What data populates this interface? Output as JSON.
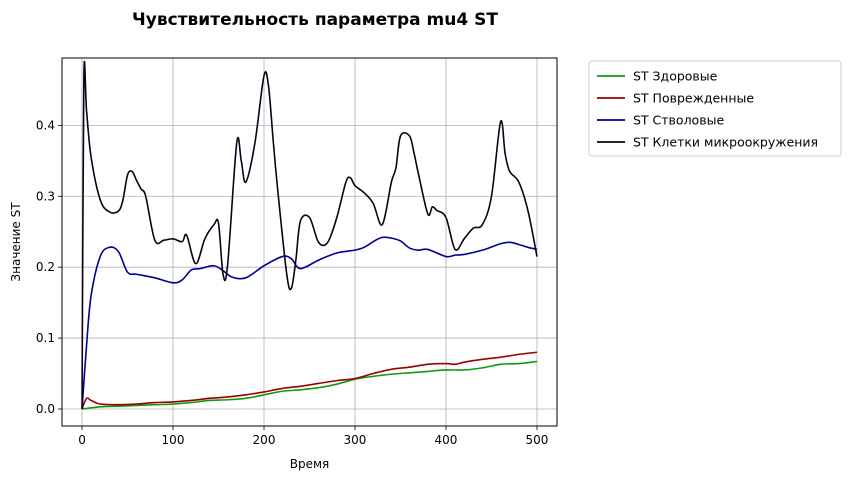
{
  "chart_data": {
    "type": "line",
    "title": "Чувствительность параметра mu4 ST",
    "xlabel": "Время",
    "ylabel": "Значение ST",
    "xlim": [
      -22,
      522
    ],
    "ylim": [
      -0.024,
      0.495
    ],
    "xticks": [
      0,
      100,
      200,
      300,
      400,
      500
    ],
    "yticks": [
      0.0,
      0.1,
      0.2,
      0.3,
      0.4
    ],
    "xtick_labels": [
      "0",
      "100",
      "200",
      "300",
      "400",
      "500"
    ],
    "ytick_labels": [
      "0.0",
      "0.1",
      "0.2",
      "0.3",
      "0.4"
    ],
    "grid": true,
    "legend_position": "outside-upper-right",
    "series": [
      {
        "name": "ST Здоровые",
        "color": "#119911",
        "x": [
          0,
          20,
          40,
          60,
          80,
          100,
          120,
          140,
          160,
          180,
          200,
          220,
          240,
          260,
          280,
          300,
          320,
          340,
          360,
          380,
          400,
          420,
          440,
          460,
          480,
          500
        ],
        "y": [
          0.0,
          0.003,
          0.004,
          0.005,
          0.006,
          0.007,
          0.009,
          0.012,
          0.013,
          0.015,
          0.02,
          0.025,
          0.027,
          0.03,
          0.035,
          0.042,
          0.046,
          0.049,
          0.051,
          0.053,
          0.055,
          0.055,
          0.058,
          0.063,
          0.064,
          0.067
        ]
      },
      {
        "name": "ST Поврежденные",
        "color": "#990000",
        "x": [
          0,
          5,
          10,
          20,
          40,
          60,
          80,
          100,
          120,
          140,
          160,
          180,
          200,
          220,
          240,
          260,
          280,
          300,
          320,
          340,
          360,
          380,
          400,
          410,
          420,
          440,
          460,
          480,
          500
        ],
        "y": [
          0.0,
          0.015,
          0.012,
          0.007,
          0.006,
          0.007,
          0.009,
          0.01,
          0.012,
          0.015,
          0.017,
          0.02,
          0.024,
          0.029,
          0.032,
          0.036,
          0.04,
          0.043,
          0.05,
          0.056,
          0.059,
          0.063,
          0.064,
          0.063,
          0.066,
          0.07,
          0.073,
          0.077,
          0.08
        ]
      },
      {
        "name": "ST Стволовые",
        "color": "#000099",
        "x": [
          0,
          5,
          10,
          20,
          30,
          40,
          50,
          60,
          80,
          100,
          110,
          120,
          130,
          145,
          155,
          165,
          180,
          200,
          220,
          230,
          240,
          260,
          280,
          300,
          310,
          320,
          330,
          340,
          350,
          360,
          370,
          380,
          400,
          410,
          420,
          440,
          460,
          470,
          480,
          490,
          500
        ],
        "y": [
          0.0,
          0.09,
          0.16,
          0.215,
          0.228,
          0.222,
          0.193,
          0.19,
          0.185,
          0.178,
          0.182,
          0.196,
          0.198,
          0.202,
          0.195,
          0.186,
          0.185,
          0.202,
          0.215,
          0.212,
          0.198,
          0.21,
          0.22,
          0.224,
          0.228,
          0.236,
          0.242,
          0.241,
          0.237,
          0.227,
          0.224,
          0.225,
          0.215,
          0.217,
          0.218,
          0.224,
          0.233,
          0.235,
          0.232,
          0.228,
          0.225
        ]
      },
      {
        "name": "ST Клетки микроокружения",
        "color": "#0d0016",
        "x": [
          0,
          2,
          5,
          10,
          20,
          30,
          40,
          45,
          50,
          55,
          60,
          65,
          70,
          80,
          90,
          100,
          110,
          115,
          125,
          135,
          145,
          150,
          155,
          160,
          170,
          175,
          180,
          190,
          200,
          205,
          210,
          215,
          225,
          230,
          235,
          240,
          250,
          260,
          270,
          280,
          290,
          295,
          300,
          310,
          320,
          330,
          340,
          345,
          350,
          360,
          365,
          370,
          380,
          385,
          390,
          400,
          410,
          420,
          430,
          440,
          450,
          460,
          465,
          470,
          480,
          490,
          500
        ],
        "y": [
          0.0,
          0.465,
          0.42,
          0.355,
          0.295,
          0.278,
          0.279,
          0.295,
          0.33,
          0.335,
          0.322,
          0.31,
          0.3,
          0.238,
          0.238,
          0.24,
          0.236,
          0.245,
          0.205,
          0.24,
          0.26,
          0.262,
          0.19,
          0.203,
          0.375,
          0.35,
          0.32,
          0.375,
          0.47,
          0.455,
          0.38,
          0.31,
          0.19,
          0.17,
          0.21,
          0.265,
          0.27,
          0.235,
          0.235,
          0.27,
          0.32,
          0.326,
          0.315,
          0.305,
          0.29,
          0.26,
          0.32,
          0.34,
          0.385,
          0.385,
          0.36,
          0.33,
          0.275,
          0.285,
          0.28,
          0.27,
          0.225,
          0.24,
          0.255,
          0.26,
          0.3,
          0.405,
          0.36,
          0.335,
          0.32,
          0.28,
          0.215
        ]
      }
    ]
  }
}
